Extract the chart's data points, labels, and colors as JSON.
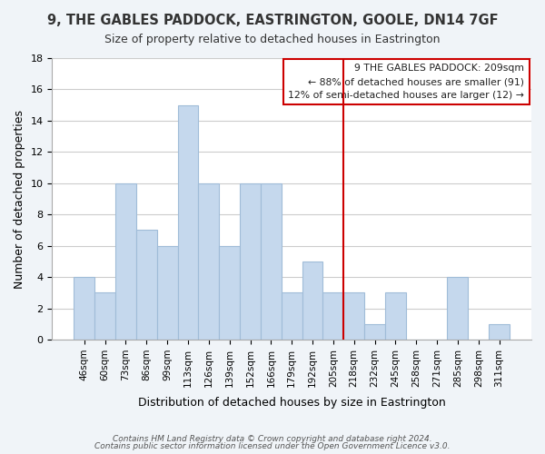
{
  "title": "9, THE GABLES PADDOCK, EASTRINGTON, GOOLE, DN14 7GF",
  "subtitle": "Size of property relative to detached houses in Eastrington",
  "xlabel": "Distribution of detached houses by size in Eastrington",
  "ylabel": "Number of detached properties",
  "bar_labels": [
    "46sqm",
    "60sqm",
    "73sqm",
    "86sqm",
    "99sqm",
    "113sqm",
    "126sqm",
    "139sqm",
    "152sqm",
    "166sqm",
    "179sqm",
    "192sqm",
    "205sqm",
    "218sqm",
    "232sqm",
    "245sqm",
    "258sqm",
    "271sqm",
    "285sqm",
    "298sqm",
    "311sqm"
  ],
  "bar_values": [
    4,
    3,
    10,
    7,
    6,
    15,
    10,
    6,
    10,
    10,
    3,
    5,
    3,
    3,
    1,
    3,
    0,
    0,
    4,
    0,
    1
  ],
  "bar_color": "#c5d8ed",
  "bar_edge_color": "#a0bcd8",
  "ylim": [
    0,
    18
  ],
  "yticks": [
    0,
    2,
    4,
    6,
    8,
    10,
    12,
    14,
    16,
    18
  ],
  "property_line_x": 12.5,
  "property_line_color": "#cc0000",
  "annotation_title": "9 THE GABLES PADDOCK: 209sqm",
  "annotation_line1": "← 88% of detached houses are smaller (91)",
  "annotation_line2": "12% of semi-detached houses are larger (12) →",
  "footnote1": "Contains HM Land Registry data © Crown copyright and database right 2024.",
  "footnote2": "Contains public sector information licensed under the Open Government Licence v3.0.",
  "bg_color": "#f0f4f8",
  "plot_bg_color": "#ffffff",
  "grid_color": "#cccccc"
}
